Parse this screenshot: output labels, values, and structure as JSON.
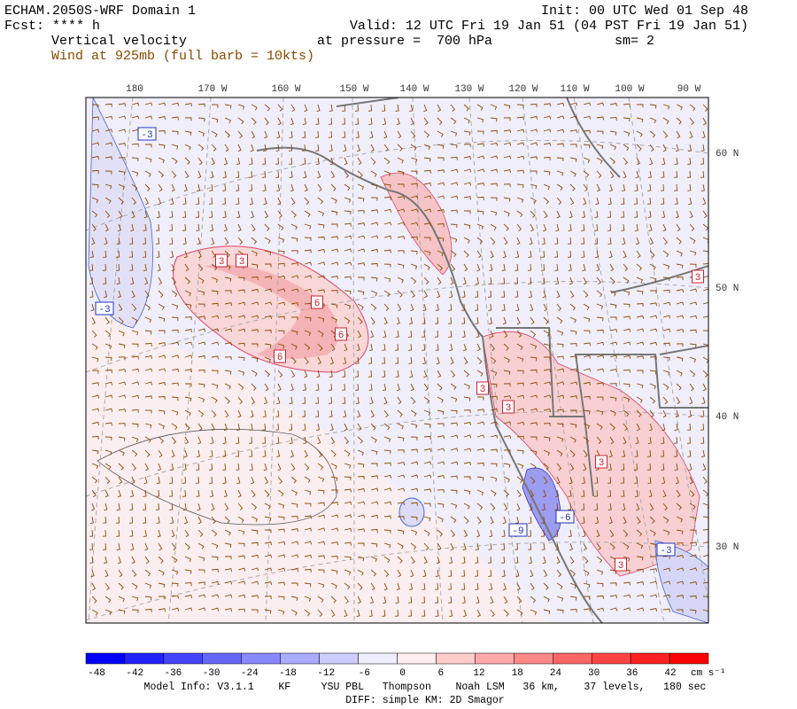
{
  "header": {
    "title": "ECHAM.2050S-WRF Domain 1",
    "init": "Init: 00 UTC Wed 01 Sep 48",
    "forecast": "Fcst: **** h",
    "valid": "Valid: 12 UTC Fri 19 Jan 51 (04 PST Fri 19 Jan 51)",
    "field": "Vertical velocity",
    "level": "at pressure =  700 hPa",
    "smoothing": "sm= 2",
    "wind": "Wind at 925mb (full barb = 10kts)"
  },
  "map": {
    "longitude_labels": [
      "180",
      "170 W",
      "160 W",
      "150 W",
      "140 W",
      "130 W",
      "120 W",
      "110 W",
      "100 W",
      "90 W"
    ],
    "latitude_labels": [
      "60 N",
      "50 N",
      "40 N",
      "30 N"
    ],
    "contour_labels": [
      -3,
      3,
      3,
      6,
      6,
      6,
      -3,
      3,
      3,
      3,
      3,
      -6,
      -9,
      3,
      -3
    ]
  },
  "colorbar": {
    "ticks": [
      -48,
      -42,
      -36,
      -30,
      -24,
      -18,
      -12,
      -6,
      0,
      6,
      12,
      18,
      24,
      30,
      36,
      42
    ],
    "unit": "cm s⁻¹"
  },
  "footer": {
    "model_info": "Model Info: V3.1.1    KF     YSU PBL   Thompson    Noah LSM   36 km,    37 levels,   180 sec",
    "diff": "DIFF: simple KM: 2D Smagor"
  }
}
